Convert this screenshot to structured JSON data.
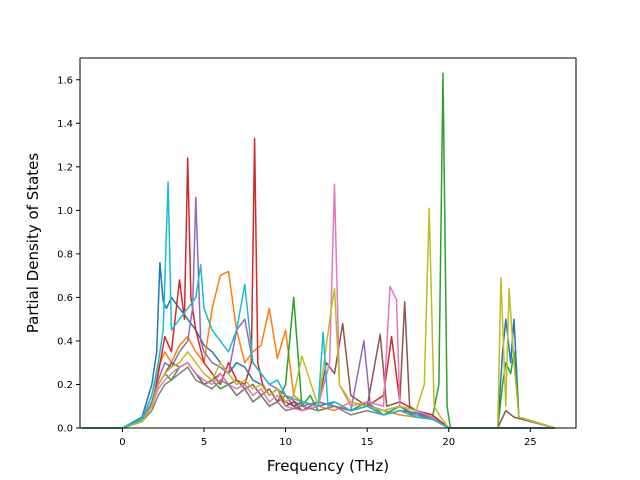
{
  "chart_data": {
    "type": "line",
    "title": "",
    "xlabel": "Frequency (THz)",
    "ylabel": "Partial Density of States",
    "xlim": [
      -2.6,
      27.8
    ],
    "ylim": [
      0.0,
      1.7
    ],
    "xticks": [
      0,
      5,
      10,
      15,
      20,
      25
    ],
    "yticks": [
      0.0,
      0.2,
      0.4,
      0.6,
      0.8,
      1.0,
      1.2,
      1.4,
      1.6
    ],
    "xtick_labels": [
      "0",
      "5",
      "10",
      "15",
      "20",
      "25"
    ],
    "ytick_labels": [
      "0.0",
      "0.2",
      "0.4",
      "0.6",
      "0.8",
      "1.0",
      "1.2",
      "1.4",
      "1.6"
    ],
    "grid": false,
    "legend": "none",
    "series": [
      {
        "color": "#1f77b4",
        "x": [
          -2.5,
          0,
          1.2,
          1.8,
          2.1,
          2.3,
          2.5,
          2.7,
          3.0,
          3.5,
          4.0,
          4.5,
          5.0,
          5.5,
          6.0,
          6.5,
          7.0,
          7.5,
          8.0,
          8.5,
          9.0,
          9.5,
          10.0,
          10.5,
          11.0,
          12.0,
          13.0,
          14.0,
          15.0,
          16.0,
          17.0,
          18.0,
          19.0,
          19.5,
          20.0,
          23.0,
          23.3,
          23.5,
          23.8,
          24.0,
          24.3,
          26.5
        ],
        "y": [
          0,
          0,
          0.05,
          0.2,
          0.35,
          0.76,
          0.58,
          0.55,
          0.6,
          0.55,
          0.5,
          0.45,
          0.38,
          0.35,
          0.3,
          0.25,
          0.3,
          0.28,
          0.22,
          0.2,
          0.15,
          0.18,
          0.12,
          0.1,
          0.08,
          0.1,
          0.12,
          0.08,
          0.1,
          0.06,
          0.08,
          0.07,
          0.05,
          0.03,
          0,
          0,
          0.35,
          0.5,
          0.3,
          0.5,
          0.05,
          0
        ]
      },
      {
        "color": "#ff7f0e",
        "x": [
          -2.5,
          0,
          1.2,
          1.8,
          2.2,
          2.6,
          3.0,
          3.5,
          4.0,
          4.5,
          5.0,
          5.5,
          6.0,
          6.5,
          7.0,
          7.5,
          8.0,
          8.5,
          9.0,
          9.5,
          10.0,
          10.5,
          11.0,
          12.0,
          13.0,
          14.0,
          15.0,
          16.0,
          17.0,
          18.0,
          19.0,
          19.5,
          20.0,
          26.5
        ],
        "y": [
          0,
          0,
          0.04,
          0.15,
          0.28,
          0.35,
          0.3,
          0.38,
          0.42,
          0.35,
          0.3,
          0.55,
          0.7,
          0.72,
          0.45,
          0.3,
          0.35,
          0.38,
          0.55,
          0.32,
          0.45,
          0.15,
          0.12,
          0.1,
          0.08,
          0.12,
          0.1,
          0.08,
          0.06,
          0.05,
          0.05,
          0.02,
          0,
          0
        ]
      },
      {
        "color": "#2ca02c",
        "x": [
          -2.5,
          0,
          1.2,
          1.8,
          2.2,
          2.6,
          3.0,
          3.5,
          4.0,
          4.5,
          5.0,
          5.5,
          6.0,
          6.5,
          7.0,
          7.5,
          8.0,
          8.5,
          9.0,
          9.5,
          10.0,
          10.5,
          11.0,
          11.5,
          12.0,
          13.0,
          14.0,
          15.0,
          16.0,
          17.0,
          18.0,
          19.0,
          19.4,
          19.65,
          19.9,
          20.1,
          23.0,
          23.3,
          23.5,
          23.8,
          24.0,
          24.3,
          26.5
        ],
        "y": [
          0,
          0,
          0.03,
          0.12,
          0.2,
          0.25,
          0.22,
          0.28,
          0.3,
          0.25,
          0.2,
          0.22,
          0.18,
          0.2,
          0.15,
          0.18,
          0.12,
          0.15,
          0.1,
          0.12,
          0.2,
          0.6,
          0.1,
          0.15,
          0.08,
          0.1,
          0.08,
          0.12,
          0.06,
          0.1,
          0.05,
          0.05,
          0.2,
          1.63,
          0.1,
          0,
          0,
          0.2,
          0.3,
          0.25,
          0.35,
          0.05,
          0
        ]
      },
      {
        "color": "#d62728",
        "x": [
          -2.5,
          0,
          1.2,
          1.8,
          2.2,
          2.6,
          3.0,
          3.5,
          3.8,
          4.0,
          4.2,
          4.5,
          5.0,
          5.5,
          6.0,
          6.5,
          7.0,
          7.5,
          7.9,
          8.1,
          8.3,
          8.6,
          9.0,
          9.5,
          10.0,
          10.5,
          11.0,
          12.0,
          13.0,
          14.0,
          15.0,
          16.0,
          16.5,
          17.0,
          18.0,
          19.0,
          19.5,
          20.0,
          26.5
        ],
        "y": [
          0,
          0,
          0.03,
          0.1,
          0.25,
          0.42,
          0.35,
          0.68,
          0.5,
          1.24,
          0.6,
          0.45,
          0.3,
          0.25,
          0.2,
          0.3,
          0.22,
          0.2,
          0.3,
          1.33,
          0.3,
          0.2,
          0.15,
          0.18,
          0.1,
          0.12,
          0.08,
          0.12,
          0.1,
          0.08,
          0.1,
          0.15,
          0.42,
          0.12,
          0.08,
          0.06,
          0.03,
          0,
          0
        ]
      },
      {
        "color": "#9467bd",
        "x": [
          -2.5,
          0,
          1.2,
          1.8,
          2.2,
          2.6,
          3.0,
          3.5,
          4.0,
          4.3,
          4.5,
          4.8,
          5.0,
          5.5,
          6.0,
          6.5,
          7.0,
          7.5,
          8.0,
          8.5,
          9.0,
          9.5,
          10.0,
          11.0,
          12.0,
          13.0,
          14.0,
          14.8,
          15.2,
          16.0,
          17.0,
          18.0,
          19.0,
          19.5,
          20.0,
          26.5
        ],
        "y": [
          0,
          0,
          0.03,
          0.12,
          0.22,
          0.3,
          0.28,
          0.35,
          0.4,
          0.55,
          1.06,
          0.4,
          0.35,
          0.3,
          0.28,
          0.25,
          0.45,
          0.5,
          0.3,
          0.25,
          0.2,
          0.18,
          0.15,
          0.1,
          0.12,
          0.1,
          0.08,
          0.4,
          0.1,
          0.08,
          0.1,
          0.06,
          0.05,
          0.02,
          0,
          0
        ]
      },
      {
        "color": "#8c564b",
        "x": [
          -2.5,
          0,
          1.2,
          1.8,
          2.2,
          2.6,
          3.0,
          3.5,
          4.0,
          4.5,
          5.0,
          5.5,
          6.0,
          6.5,
          7.0,
          7.5,
          8.0,
          8.5,
          9.0,
          9.5,
          10.0,
          10.5,
          11.0,
          12.0,
          12.5,
          13.0,
          13.5,
          14.0,
          15.0,
          15.8,
          16.2,
          17.0,
          17.3,
          17.6,
          18.0,
          19.0,
          19.5,
          20.0,
          23.0,
          23.5,
          24.0,
          26.5
        ],
        "y": [
          0,
          0,
          0.03,
          0.1,
          0.2,
          0.25,
          0.3,
          0.28,
          0.3,
          0.25,
          0.2,
          0.22,
          0.25,
          0.2,
          0.22,
          0.18,
          0.2,
          0.15,
          0.18,
          0.12,
          0.15,
          0.1,
          0.12,
          0.1,
          0.3,
          0.25,
          0.48,
          0.15,
          0.1,
          0.43,
          0.1,
          0.12,
          0.58,
          0.1,
          0.08,
          0.05,
          0.02,
          0,
          0,
          0.08,
          0.05,
          0
        ]
      },
      {
        "color": "#e377c2",
        "x": [
          -2.5,
          0,
          1.2,
          1.8,
          2.2,
          2.6,
          3.0,
          3.5,
          4.0,
          4.5,
          5.0,
          5.5,
          6.0,
          6.5,
          7.0,
          7.5,
          8.0,
          8.5,
          9.0,
          9.5,
          10.0,
          11.0,
          12.0,
          12.7,
          13.0,
          13.3,
          14.0,
          15.0,
          16.0,
          16.4,
          16.8,
          17.0,
          18.0,
          19.0,
          19.5,
          20.0,
          26.5
        ],
        "y": [
          0,
          0,
          0.03,
          0.1,
          0.18,
          0.22,
          0.25,
          0.28,
          0.3,
          0.25,
          0.22,
          0.2,
          0.25,
          0.2,
          0.18,
          0.2,
          0.15,
          0.18,
          0.12,
          0.15,
          0.1,
          0.08,
          0.1,
          0.3,
          1.12,
          0.2,
          0.1,
          0.12,
          0.1,
          0.65,
          0.59,
          0.1,
          0.08,
          0.05,
          0.02,
          0,
          0
        ]
      },
      {
        "color": "#7f7f7f",
        "x": [
          -2.5,
          0,
          1.2,
          1.8,
          2.2,
          2.6,
          3.0,
          3.5,
          4.0,
          4.5,
          5.0,
          5.5,
          6.0,
          6.5,
          7.0,
          7.5,
          8.0,
          8.5,
          9.0,
          9.5,
          10.0,
          11.0,
          12.0,
          13.0,
          14.0,
          15.0,
          16.0,
          17.0,
          18.0,
          19.0,
          19.5,
          20.0,
          26.5
        ],
        "y": [
          0,
          0,
          0.03,
          0.08,
          0.15,
          0.2,
          0.22,
          0.25,
          0.28,
          0.22,
          0.2,
          0.18,
          0.22,
          0.2,
          0.15,
          0.18,
          0.12,
          0.15,
          0.1,
          0.12,
          0.08,
          0.1,
          0.08,
          0.1,
          0.06,
          0.08,
          0.06,
          0.08,
          0.05,
          0.04,
          0.02,
          0,
          0
        ]
      },
      {
        "color": "#bcbd22",
        "x": [
          -2.5,
          0,
          1.2,
          1.8,
          2.2,
          2.6,
          3.0,
          3.5,
          4.0,
          4.5,
          5.0,
          5.5,
          6.0,
          6.5,
          7.0,
          7.5,
          8.0,
          8.5,
          9.0,
          9.5,
          10.0,
          10.5,
          11.0,
          12.0,
          12.8,
          13.0,
          13.3,
          14.0,
          15.0,
          16.0,
          17.0,
          18.0,
          18.5,
          18.8,
          19.1,
          19.5,
          20.0,
          23.0,
          23.2,
          23.5,
          23.7,
          24.0,
          24.3,
          26.5
        ],
        "y": [
          0,
          0,
          0.03,
          0.1,
          0.2,
          0.25,
          0.28,
          0.3,
          0.35,
          0.3,
          0.25,
          0.22,
          0.3,
          0.25,
          0.2,
          0.22,
          0.18,
          0.2,
          0.15,
          0.18,
          0.12,
          0.15,
          0.33,
          0.1,
          0.55,
          0.64,
          0.2,
          0.12,
          0.1,
          0.08,
          0.1,
          0.08,
          0.2,
          1.01,
          0.1,
          0.05,
          0,
          0,
          0.69,
          0.1,
          0.64,
          0.3,
          0.05,
          0
        ]
      },
      {
        "color": "#17becf",
        "x": [
          -2.5,
          0,
          1.2,
          1.8,
          2.2,
          2.5,
          2.8,
          3.0,
          3.5,
          4.0,
          4.5,
          4.8,
          5.0,
          5.5,
          6.0,
          6.5,
          7.0,
          7.5,
          8.0,
          8.5,
          9.0,
          9.5,
          10.0,
          11.0,
          12.0,
          12.3,
          12.6,
          13.0,
          14.0,
          15.0,
          16.0,
          17.0,
          18.0,
          19.0,
          19.5,
          20.0,
          26.5
        ],
        "y": [
          0,
          0,
          0.04,
          0.15,
          0.3,
          0.45,
          1.13,
          0.45,
          0.5,
          0.55,
          0.6,
          0.75,
          0.55,
          0.45,
          0.4,
          0.35,
          0.45,
          0.66,
          0.3,
          0.25,
          0.2,
          0.22,
          0.15,
          0.12,
          0.1,
          0.44,
          0.1,
          0.12,
          0.08,
          0.1,
          0.06,
          0.08,
          0.05,
          0.04,
          0.02,
          0,
          0
        ]
      }
    ]
  }
}
